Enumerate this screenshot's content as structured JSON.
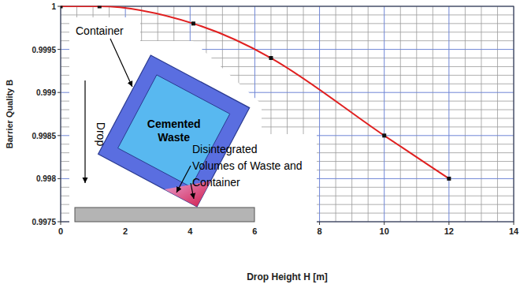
{
  "chart_data": {
    "type": "line",
    "x_label": "Drop Height H [m]",
    "y_label": "Barrier Quality B",
    "x": [
      0,
      1.2,
      4.1,
      6.5,
      10,
      12
    ],
    "series": [
      {
        "color": "#e02020",
        "marker": "square",
        "line_style": "solid",
        "values": [
          1,
          1,
          0.9998,
          0.9994,
          0.9985,
          0.998
        ]
      }
    ],
    "xlim": [
      0,
      14
    ],
    "ylim": [
      0.9975,
      1
    ],
    "xticks": [
      0,
      2,
      4,
      6,
      8,
      10,
      12,
      14
    ],
    "yticks": [
      0.9975,
      0.998,
      0.9985,
      0.999,
      0.9995,
      1
    ],
    "grid": true,
    "annotations": [
      {
        "lines": [
          "Container"
        ]
      },
      {
        "lines": [
          "Drop"
        ]
      },
      {
        "lines": [
          "Cemented",
          "Waste"
        ]
      },
      {
        "lines": [
          "Disintegrated",
          "Volumes of Waste and",
          "Container"
        ]
      }
    ]
  }
}
